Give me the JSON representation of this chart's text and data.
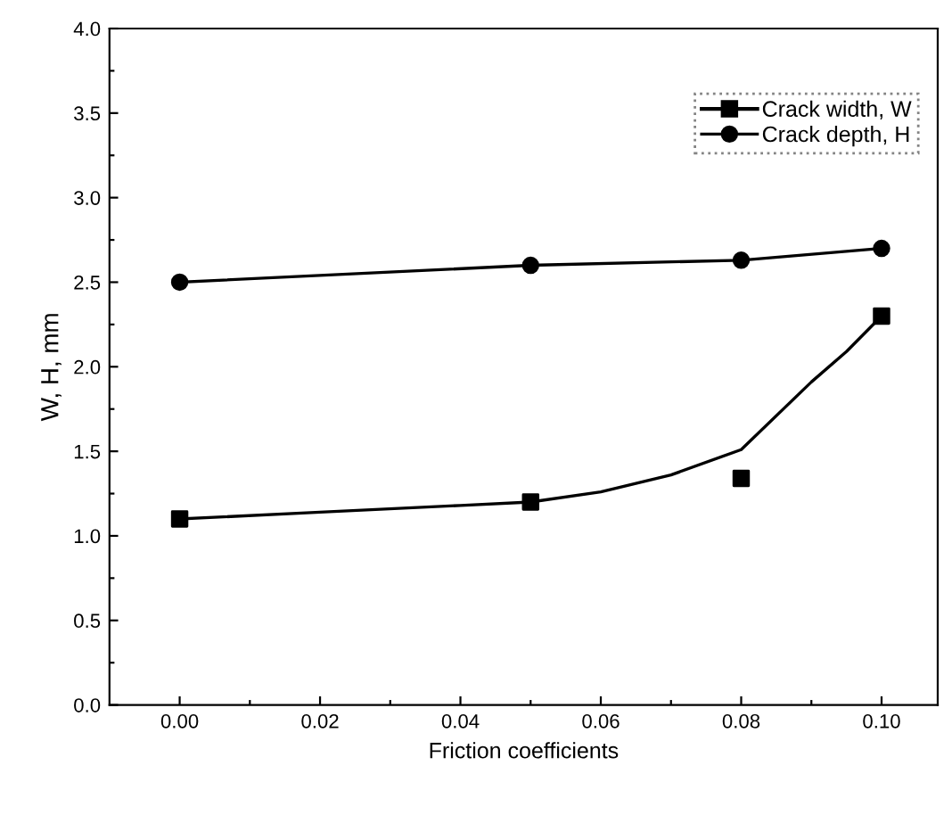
{
  "chart_data": {
    "type": "line",
    "xlabel": "Friction coefficients",
    "ylabel": "W, H, mm",
    "xlim": [
      -0.01,
      0.108
    ],
    "ylim": [
      0,
      4.0
    ],
    "xticks": [
      {
        "value": 0,
        "label": "0.00"
      },
      {
        "value": 0.01,
        "label": null
      },
      {
        "value": 0.02,
        "label": "0.02"
      },
      {
        "value": 0.03,
        "label": null
      },
      {
        "value": 0.04,
        "label": "0.04"
      },
      {
        "value": 0.05,
        "label": null
      },
      {
        "value": 0.06,
        "label": "0.06"
      },
      {
        "value": 0.07,
        "label": null
      },
      {
        "value": 0.08,
        "label": "0.08"
      },
      {
        "value": 0.09,
        "label": null
      },
      {
        "value": 0.1,
        "label": "0.10"
      }
    ],
    "yticks": [
      {
        "value": 0,
        "label": "0.0"
      },
      {
        "value": 0.25,
        "label": null
      },
      {
        "value": 0.5,
        "label": "0.5"
      },
      {
        "value": 0.75,
        "label": null
      },
      {
        "value": 1,
        "label": "1.0"
      },
      {
        "value": 1.25,
        "label": null
      },
      {
        "value": 1.5,
        "label": "1.5"
      },
      {
        "value": 1.75,
        "label": null
      },
      {
        "value": 2,
        "label": "2.0"
      },
      {
        "value": 2.25,
        "label": null
      },
      {
        "value": 2.5,
        "label": "2.5"
      },
      {
        "value": 2.75,
        "label": null
      },
      {
        "value": 3,
        "label": "3.0"
      },
      {
        "value": 3.25,
        "label": null
      },
      {
        "value": 3.5,
        "label": "3.5"
      },
      {
        "value": 3.75,
        "label": null
      },
      {
        "value": 4,
        "label": "4.0"
      }
    ],
    "grid": false,
    "legend": "top right",
    "series": [
      {
        "name": "Crack width, W",
        "type": "scatter",
        "marker": "square",
        "color": "#000000",
        "x": [
          0.0,
          0.05,
          0.08,
          0.1
        ],
        "values": [
          1.1,
          1.2,
          1.34,
          2.3
        ]
      },
      {
        "name": "Crack depth, H",
        "marker": "circle",
        "line_style": "solid",
        "color": "#000000",
        "x": [
          0.0,
          0.05,
          0.08,
          0.1
        ],
        "values": [
          2.5,
          2.6,
          2.63,
          2.7
        ]
      },
      {
        "marker": "none",
        "line_style": "solid",
        "color": "#000000",
        "x": [
          0.0,
          0.02,
          0.04,
          0.05,
          0.06,
          0.07,
          0.08,
          0.09,
          0.095,
          0.1
        ],
        "values": [
          1.1,
          1.14,
          1.18,
          1.2,
          1.26,
          1.36,
          1.51,
          1.91,
          2.09,
          2.3
        ]
      }
    ]
  }
}
